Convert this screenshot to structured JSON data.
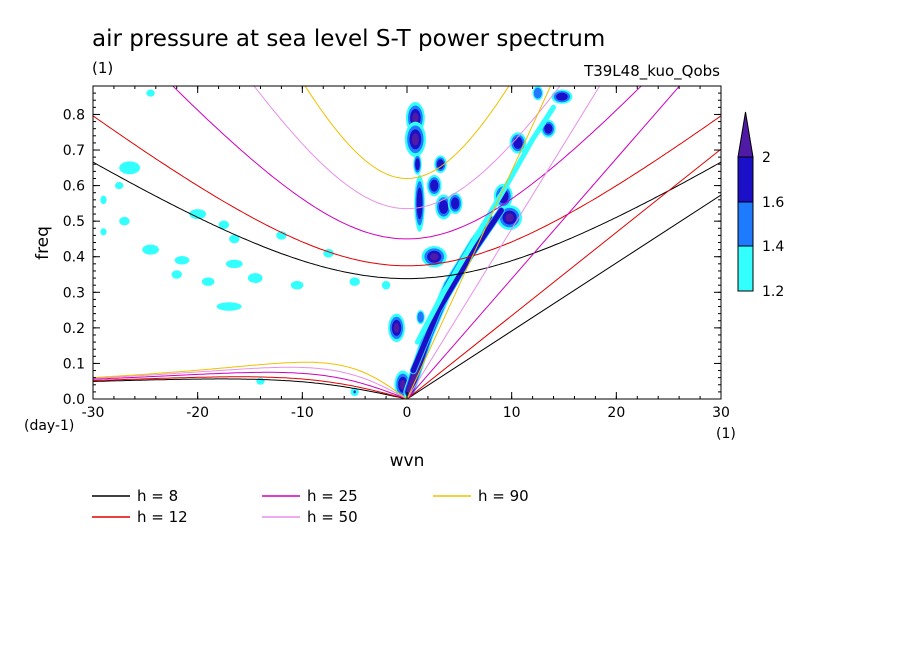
{
  "chart_data": {
    "type": "contour",
    "title": "air pressure at sea level S-T power spectrum",
    "unit_label": "(1)",
    "dataset_label": "T39L48_kuo_Qobs",
    "xlabel": "wvn",
    "ylabel": "freq",
    "x_unit": "(1)",
    "y_unit": "(day-1)",
    "xlim": [
      -30,
      30
    ],
    "ylim": [
      0,
      0.88
    ],
    "x_ticks": [
      -30,
      -20,
      -10,
      0,
      10,
      20,
      30
    ],
    "x_tick_labels": [
      "-30",
      "-20",
      "-10",
      "0",
      "10",
      "20",
      "30"
    ],
    "y_ticks": [
      0,
      0.1,
      0.2,
      0.3,
      0.4,
      0.5,
      0.6,
      0.7,
      0.8
    ],
    "y_tick_labels": [
      "0.0",
      "0.1",
      "0.2",
      "0.3",
      "0.4",
      "0.5",
      "0.6",
      "0.7",
      "0.8"
    ],
    "colorbar": {
      "levels": [
        1.2,
        1.4,
        1.6,
        2
      ],
      "level_labels": [
        "1.2",
        "1.4",
        "1.6",
        "2"
      ],
      "colors": [
        "#33ffff",
        "#1e7bff",
        "#1c0fc8",
        "#4e1aa6"
      ]
    },
    "dispersion_curves": [
      {
        "name": "h =  8",
        "h": 8,
        "color": "#000000"
      },
      {
        "name": "h = 12",
        "h": 12,
        "color": "#e00000"
      },
      {
        "name": "h = 25",
        "h": 25,
        "color": "#d000c0"
      },
      {
        "name": "h = 50",
        "h": 50,
        "color": "#e890e8"
      },
      {
        "name": "h = 90",
        "h": 90,
        "color": "#f0c000"
      }
    ],
    "blobs": [
      {
        "x": 0.8,
        "y": 0.79,
        "rx": 0.9,
        "ry": 0.045,
        "level": 3
      },
      {
        "x": 0.8,
        "y": 0.73,
        "rx": 1.0,
        "ry": 0.05,
        "level": 3
      },
      {
        "x": 1.0,
        "y": 0.66,
        "rx": 0.4,
        "ry": 0.03,
        "level": 2
      },
      {
        "x": 1.2,
        "y": 0.55,
        "rx": 0.5,
        "ry": 0.08,
        "level": 2
      },
      {
        "x": 2.6,
        "y": 0.6,
        "rx": 0.7,
        "ry": 0.03,
        "level": 2
      },
      {
        "x": 3.2,
        "y": 0.66,
        "rx": 0.6,
        "ry": 0.025,
        "level": 2
      },
      {
        "x": 3.5,
        "y": 0.54,
        "rx": 0.8,
        "ry": 0.035,
        "level": 2
      },
      {
        "x": 4.6,
        "y": 0.55,
        "rx": 0.7,
        "ry": 0.03,
        "level": 2
      },
      {
        "x": 2.6,
        "y": 0.4,
        "rx": 1.2,
        "ry": 0.03,
        "level": 3
      },
      {
        "x": 9.2,
        "y": 0.57,
        "rx": 0.9,
        "ry": 0.035,
        "level": 2
      },
      {
        "x": 9.8,
        "y": 0.51,
        "rx": 1.2,
        "ry": 0.035,
        "level": 3
      },
      {
        "x": 10.6,
        "y": 0.72,
        "rx": 0.8,
        "ry": 0.03,
        "level": 2
      },
      {
        "x": 13.5,
        "y": 0.76,
        "rx": 0.7,
        "ry": 0.025,
        "level": 2
      },
      {
        "x": 14.8,
        "y": 0.85,
        "rx": 1.0,
        "ry": 0.02,
        "level": 2
      },
      {
        "x": 12.5,
        "y": 0.86,
        "rx": 0.5,
        "ry": 0.02,
        "level": 1
      },
      {
        "x": -1.0,
        "y": 0.2,
        "rx": 0.8,
        "ry": 0.04,
        "level": 3
      },
      {
        "x": 1.3,
        "y": 0.23,
        "rx": 0.4,
        "ry": 0.02,
        "level": 1
      },
      {
        "x": -0.4,
        "y": 0.04,
        "rx": 0.8,
        "ry": 0.04,
        "level": 3
      },
      {
        "x": -26.5,
        "y": 0.65,
        "rx": 1.0,
        "ry": 0.018,
        "level": 0
      },
      {
        "x": -27,
        "y": 0.5,
        "rx": 0.5,
        "ry": 0.012,
        "level": 0
      },
      {
        "x": -29,
        "y": 0.56,
        "rx": 0.3,
        "ry": 0.012,
        "level": 0
      },
      {
        "x": -27.5,
        "y": 0.6,
        "rx": 0.4,
        "ry": 0.01,
        "level": 0
      },
      {
        "x": -24.5,
        "y": 0.42,
        "rx": 0.8,
        "ry": 0.014,
        "level": 0
      },
      {
        "x": -21.5,
        "y": 0.39,
        "rx": 0.7,
        "ry": 0.012,
        "level": 0
      },
      {
        "x": -20,
        "y": 0.52,
        "rx": 0.8,
        "ry": 0.014,
        "level": 0
      },
      {
        "x": -17.5,
        "y": 0.49,
        "rx": 0.5,
        "ry": 0.012,
        "level": 0
      },
      {
        "x": -16.5,
        "y": 0.45,
        "rx": 0.5,
        "ry": 0.012,
        "level": 0
      },
      {
        "x": -17,
        "y": 0.26,
        "rx": 1.2,
        "ry": 0.012,
        "level": 0
      },
      {
        "x": -22,
        "y": 0.35,
        "rx": 0.5,
        "ry": 0.012,
        "level": 0
      },
      {
        "x": -19,
        "y": 0.33,
        "rx": 0.6,
        "ry": 0.012,
        "level": 0
      },
      {
        "x": -16.5,
        "y": 0.38,
        "rx": 0.8,
        "ry": 0.012,
        "level": 0
      },
      {
        "x": -14.5,
        "y": 0.34,
        "rx": 0.7,
        "ry": 0.014,
        "level": 0
      },
      {
        "x": -10.5,
        "y": 0.32,
        "rx": 0.6,
        "ry": 0.012,
        "level": 0
      },
      {
        "x": -5,
        "y": 0.33,
        "rx": 0.5,
        "ry": 0.012,
        "level": 0
      },
      {
        "x": -2,
        "y": 0.32,
        "rx": 0.4,
        "ry": 0.012,
        "level": 0
      },
      {
        "x": -7.5,
        "y": 0.41,
        "rx": 0.5,
        "ry": 0.012,
        "level": 0
      },
      {
        "x": -14,
        "y": 0.05,
        "rx": 0.4,
        "ry": 0.01,
        "level": 0
      },
      {
        "x": -5,
        "y": 0.02,
        "rx": 0.4,
        "ry": 0.012,
        "level": 0
      },
      {
        "x": -5,
        "y": 0.02,
        "rx": 0.15,
        "ry": 0.006,
        "level": 3
      },
      {
        "x": -24.5,
        "y": 0.86,
        "rx": 0.4,
        "ry": 0.01,
        "level": 0
      },
      {
        "x": -29,
        "y": 0.47,
        "rx": 0.3,
        "ry": 0.01,
        "level": 0
      },
      {
        "x": -12,
        "y": 0.46,
        "rx": 0.5,
        "ry": 0.012,
        "level": 0
      }
    ],
    "ridges": [
      {
        "points": [
          [
            0.2,
            0.02
          ],
          [
            2,
            0.18
          ],
          [
            4,
            0.32
          ],
          [
            6.5,
            0.44
          ],
          [
            8,
            0.5
          ]
        ],
        "width": 0.9,
        "level": 3
      },
      {
        "points": [
          [
            0.6,
            0.08
          ],
          [
            3,
            0.25
          ],
          [
            6,
            0.4
          ],
          [
            9,
            0.53
          ]
        ],
        "width": 0.5,
        "level": 2
      },
      {
        "points": [
          [
            1,
            0.16
          ],
          [
            3.5,
            0.3
          ],
          [
            6.5,
            0.45
          ],
          [
            9.5,
            0.6
          ],
          [
            12,
            0.73
          ],
          [
            14,
            0.82
          ]
        ],
        "width": 0.3,
        "level": 0
      }
    ]
  },
  "legend": [
    {
      "label": "h =  8",
      "color": "#000000"
    },
    {
      "label": "h = 12",
      "color": "#e00000"
    },
    {
      "label": "h = 25",
      "color": "#d000c0"
    },
    {
      "label": "h = 50",
      "color": "#e890e8"
    },
    {
      "label": "h = 90",
      "color": "#f0c000"
    }
  ]
}
